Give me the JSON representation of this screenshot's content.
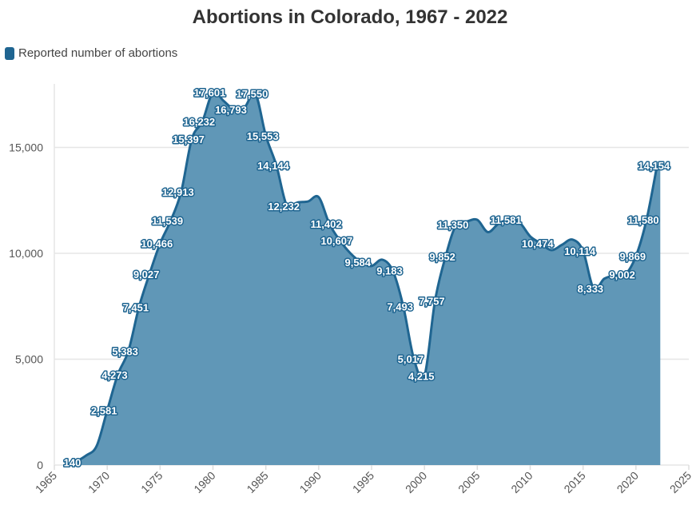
{
  "chart_data": {
    "type": "area",
    "title": "Abortions in Colorado, 1967 - 2022",
    "xlabel": "",
    "ylabel": "",
    "xlim": [
      1965,
      2025
    ],
    "ylim": [
      0,
      18000
    ],
    "x_ticks": [
      1965,
      1970,
      1975,
      1980,
      1985,
      1990,
      1995,
      2000,
      2005,
      2010,
      2015,
      2020,
      2025
    ],
    "y_ticks": [
      0,
      5000,
      10000,
      15000
    ],
    "y_tick_labels": [
      "0",
      "5,000",
      "10,000",
      "15,000"
    ],
    "grid": "horizontal",
    "legend_placement": "top-left",
    "colors": {
      "line": "#1f6591",
      "fill": "#6097b7"
    },
    "series": [
      {
        "name": "Reported number of abortions",
        "points": [
          {
            "x": 1967,
            "y": 140,
            "label": "140"
          },
          {
            "x": 1968,
            "y": 450
          },
          {
            "x": 1969,
            "y": 900
          },
          {
            "x": 1970,
            "y": 2581,
            "label": "2,581"
          },
          {
            "x": 1971,
            "y": 4273,
            "label": "4,273"
          },
          {
            "x": 1972,
            "y": 5383,
            "label": "5,383"
          },
          {
            "x": 1973,
            "y": 7451,
            "label": "7,451"
          },
          {
            "x": 1974,
            "y": 9027,
            "label": "9,027"
          },
          {
            "x": 1975,
            "y": 10466,
            "label": "10,466"
          },
          {
            "x": 1976,
            "y": 11539,
            "label": "11,539"
          },
          {
            "x": 1977,
            "y": 12913,
            "label": "12,913"
          },
          {
            "x": 1978,
            "y": 15397,
            "label": "15,397"
          },
          {
            "x": 1979,
            "y": 16232,
            "label": "16,232"
          },
          {
            "x": 1980,
            "y": 17601,
            "label": "17,601"
          },
          {
            "x": 1981,
            "y": 17200
          },
          {
            "x": 1982,
            "y": 16793,
            "label": "16,793"
          },
          {
            "x": 1983,
            "y": 16900
          },
          {
            "x": 1984,
            "y": 17550,
            "label": "17,550"
          },
          {
            "x": 1985,
            "y": 15553,
            "label": "15,553"
          },
          {
            "x": 1986,
            "y": 14144,
            "label": "14,144"
          },
          {
            "x": 1987,
            "y": 12232,
            "label": "12,232"
          },
          {
            "x": 1988,
            "y": 12400
          },
          {
            "x": 1989,
            "y": 12450
          },
          {
            "x": 1990,
            "y": 12650
          },
          {
            "x": 1991,
            "y": 11402,
            "label": "11,402"
          },
          {
            "x": 1992,
            "y": 10607,
            "label": "10,607"
          },
          {
            "x": 1993,
            "y": 10000
          },
          {
            "x": 1994,
            "y": 9584,
            "label": "9,584"
          },
          {
            "x": 1995,
            "y": 9400
          },
          {
            "x": 1996,
            "y": 9700
          },
          {
            "x": 1997,
            "y": 9183,
            "label": "9,183"
          },
          {
            "x": 1998,
            "y": 7493,
            "label": "7,493"
          },
          {
            "x": 1999,
            "y": 5017,
            "label": "5,017"
          },
          {
            "x": 2000,
            "y": 4215,
            "label": "4,215"
          },
          {
            "x": 2001,
            "y": 7757,
            "label": "7,757"
          },
          {
            "x": 2002,
            "y": 9852,
            "label": "9,852"
          },
          {
            "x": 2003,
            "y": 11350,
            "label": "11,350"
          },
          {
            "x": 2004,
            "y": 11500
          },
          {
            "x": 2005,
            "y": 11580
          },
          {
            "x": 2006,
            "y": 11000
          },
          {
            "x": 2007,
            "y": 11400
          },
          {
            "x": 2008,
            "y": 11581,
            "label": "11,581"
          },
          {
            "x": 2009,
            "y": 11450
          },
          {
            "x": 2010,
            "y": 10800
          },
          {
            "x": 2011,
            "y": 10474,
            "label": "10,474"
          },
          {
            "x": 2012,
            "y": 10150
          },
          {
            "x": 2013,
            "y": 10400
          },
          {
            "x": 2014,
            "y": 10650
          },
          {
            "x": 2015,
            "y": 10114,
            "label": "10,114"
          },
          {
            "x": 2016,
            "y": 8333,
            "label": "8,333"
          },
          {
            "x": 2017,
            "y": 8800
          },
          {
            "x": 2018,
            "y": 8950
          },
          {
            "x": 2019,
            "y": 9002,
            "label": "9,002"
          },
          {
            "x": 2020,
            "y": 9869,
            "label": "9,869"
          },
          {
            "x": 2021,
            "y": 11580,
            "label": "11,580"
          },
          {
            "x": 2022,
            "y": 14154,
            "label": "14,154"
          }
        ]
      }
    ]
  }
}
